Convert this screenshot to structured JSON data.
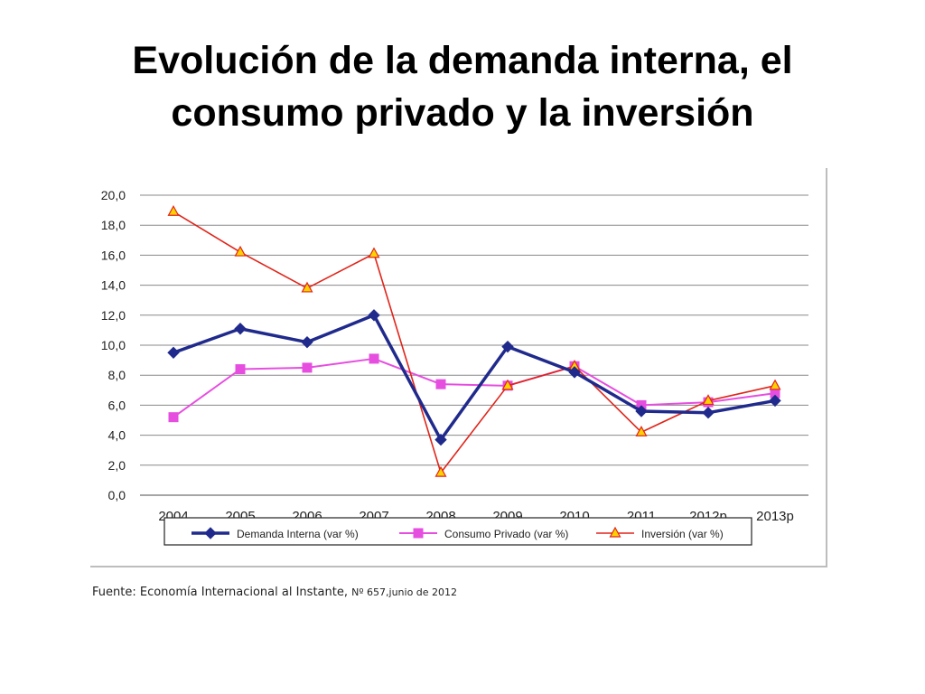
{
  "slide": {
    "title_line1": "Evolución de la demanda interna, el",
    "title_line2": "consumo privado y la inversión"
  },
  "source": {
    "prefix": "Fuente: Economía Internacional al Instante, ",
    "detail": "Nº 657,junio de 2012"
  },
  "colors": {
    "demanda": "#1f2a8c",
    "consumo": "#e64ee0",
    "inversion": "#e0241a",
    "inversion_marker": "#ffd200",
    "grid": "#888888"
  },
  "chart_data": {
    "type": "line",
    "title": "",
    "xlabel": "",
    "ylabel": "",
    "ylim": [
      0,
      20
    ],
    "y_ticks": [
      "0,0",
      "2,0",
      "4,0",
      "6,0",
      "8,0",
      "10,0",
      "12,0",
      "14,0",
      "16,0",
      "18,0",
      "20,0"
    ],
    "grid": true,
    "legend_position": "bottom",
    "categories": [
      "2004",
      "2005",
      "2006",
      "2007",
      "2008",
      "2009",
      "2010",
      "2011",
      "2012p",
      "2013p"
    ],
    "series": [
      {
        "name": "Demanda Interna (var %)",
        "marker": "diamond",
        "values": [
          9.5,
          11.1,
          10.2,
          12.0,
          3.7,
          9.9,
          8.2,
          5.6,
          5.5,
          6.3
        ]
      },
      {
        "name": "Consumo Privado (var %)",
        "marker": "square",
        "values": [
          5.2,
          8.4,
          8.5,
          9.1,
          7.4,
          7.3,
          8.6,
          6.0,
          6.2,
          6.8
        ]
      },
      {
        "name": "Inversión (var %)",
        "marker": "triangle",
        "values": [
          18.9,
          16.2,
          13.8,
          16.1,
          1.5,
          7.3,
          8.6,
          4.2,
          6.3,
          7.3
        ]
      }
    ]
  }
}
